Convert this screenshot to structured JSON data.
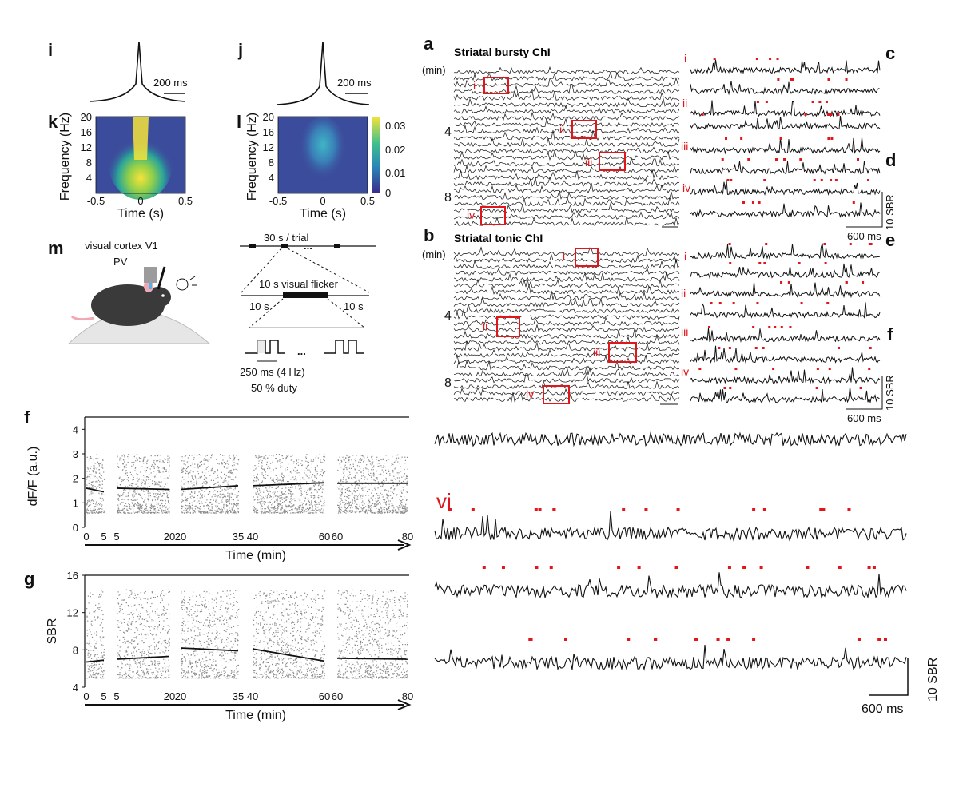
{
  "colors": {
    "accent_red": "#e0161b",
    "trace": "#111111",
    "dots": "#8a8a8a",
    "heat_low": "#3b2a8c",
    "heat_high": "#f6e33a"
  },
  "panels": {
    "i": {
      "letter": "i",
      "scale": "200 ms"
    },
    "j": {
      "letter": "j",
      "scale": "200 ms"
    },
    "k": {
      "letter": "k",
      "ylabel": "Frequency (Hz)",
      "xlabel": "Time (s)",
      "yticks": [
        "20",
        "16",
        "12",
        "8",
        "4"
      ],
      "xticks": [
        "-0.5",
        "0",
        "0.5"
      ]
    },
    "l": {
      "letter": "l",
      "ylabel": "Frequency (Hz)",
      "xlabel": "Time (s)",
      "yticks": [
        "20",
        "16",
        "12",
        "8",
        "4"
      ],
      "xticks": [
        "-0.5",
        "0",
        "0.5"
      ],
      "colorbar_ticks": [
        "0.03",
        "0.02",
        "0.01",
        "0"
      ]
    },
    "m": {
      "letter": "m",
      "line1": "visual cortex V1",
      "line2": "PV"
    },
    "protocol": {
      "trial": "30 s / trial",
      "dots": "...",
      "flicker": "10 s visual flicker",
      "pre": "10 s",
      "post": "10 s",
      "ellipsis": "...",
      "period": "250 ms (4 Hz)",
      "duty": "50 % duty"
    },
    "a": {
      "letter": "a",
      "title": "Striatal bursty ChI",
      "unit": "(min)",
      "yticks": [
        "4",
        "8"
      ],
      "boxes": [
        "i",
        "ii",
        "iii",
        "iv"
      ]
    },
    "b": {
      "letter": "b",
      "title": "Striatal tonic ChI",
      "unit": "(min)",
      "yticks": [
        "4",
        "8"
      ],
      "boxes": [
        "i",
        "ii",
        "iii",
        "iv"
      ]
    },
    "zoomA": {
      "labels": [
        "i",
        "ii",
        "iii",
        "iv"
      ],
      "scale_x": "600 ms",
      "scale_y": "10 SBR"
    },
    "zoomB": {
      "labels": [
        "i",
        "ii",
        "iii",
        "iv"
      ],
      "scale_x": "600 ms",
      "scale_y": "10 SBR"
    },
    "edge_letters": [
      "c",
      "d",
      "e",
      "f"
    ],
    "vi": {
      "label": "vi",
      "scale_x": "600 ms",
      "scale_y": "10 SBR"
    },
    "f": {
      "letter": "f",
      "ylabel": "dF/F (a.u.)",
      "xlabel": "Time (min)",
      "yticks": [
        "0",
        "1",
        "2",
        "3",
        "4"
      ],
      "xticks": [
        "0",
        "5",
        "5",
        "20",
        "20",
        "35",
        "40",
        "60",
        "60",
        "80"
      ]
    },
    "g": {
      "letter": "g",
      "ylabel": "SBR",
      "xlabel": "Time (min)",
      "yticks": [
        "4",
        "8",
        "12",
        "16"
      ],
      "xticks": [
        "0",
        "5",
        "5",
        "20",
        "20",
        "35",
        "40",
        "60",
        "60",
        "80"
      ]
    }
  },
  "chart_data": [
    {
      "type": "scatter",
      "panel": "f",
      "ylabel": "dF/F (a.u.)",
      "xlabel": "Time (min)",
      "ylim": [
        0,
        4.5
      ],
      "segments": [
        {
          "x": [
            0,
            5
          ],
          "trend": [
            1.6,
            1.45
          ]
        },
        {
          "x": [
            5,
            20
          ],
          "trend": [
            1.6,
            1.55
          ]
        },
        {
          "x": [
            20,
            35
          ],
          "trend": [
            1.55,
            1.7
          ]
        },
        {
          "x": [
            40,
            60
          ],
          "trend": [
            1.7,
            1.82
          ]
        },
        {
          "x": [
            60,
            80
          ],
          "trend": [
            1.8,
            1.8
          ]
        }
      ],
      "spread": [
        0.6,
        3.0
      ]
    },
    {
      "type": "scatter",
      "panel": "g",
      "ylabel": "SBR",
      "xlabel": "Time (min)",
      "ylim": [
        4,
        16
      ],
      "segments": [
        {
          "x": [
            0,
            5
          ],
          "trend": [
            6.7,
            6.9
          ]
        },
        {
          "x": [
            5,
            20
          ],
          "trend": [
            7.0,
            7.3
          ]
        },
        {
          "x": [
            20,
            35
          ],
          "trend": [
            8.2,
            7.9
          ]
        },
        {
          "x": [
            40,
            60
          ],
          "trend": [
            8.1,
            6.8
          ]
        },
        {
          "x": [
            60,
            80
          ],
          "trend": [
            7.1,
            7.0
          ]
        }
      ],
      "spread": [
        5.0,
        14.5
      ]
    }
  ]
}
